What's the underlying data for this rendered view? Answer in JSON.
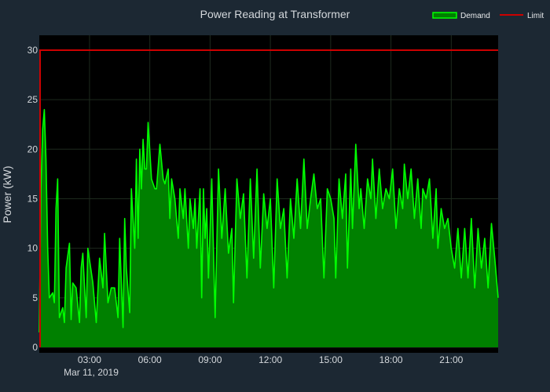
{
  "chart_data": {
    "type": "area",
    "title": "Power Reading at Transformer",
    "xlabel": "",
    "ylabel": "Power (kW)",
    "x_date_label": "Mar 11, 2019",
    "x_range": [
      "2019-03-11 00:30",
      "2019-03-11 23:20"
    ],
    "x_tick_labels": [
      "03:00",
      "06:00",
      "09:00",
      "12:00",
      "15:00",
      "18:00",
      "21:00"
    ],
    "ylim": [
      0,
      31.5
    ],
    "y_ticks": [
      0,
      5,
      10,
      15,
      20,
      25,
      30
    ],
    "grid": true,
    "legend_position": "top-right",
    "background_color": "#000000",
    "page_color": "#1c2833",
    "series": [
      {
        "name": "Demand",
        "type": "area",
        "line_color": "#00ff00",
        "fill_color": "#008000",
        "points": [
          [
            "00:30",
            1.5
          ],
          [
            "00:35",
            16
          ],
          [
            "00:40",
            22
          ],
          [
            "00:45",
            24
          ],
          [
            "00:50",
            19
          ],
          [
            "00:55",
            10
          ],
          [
            "01:00",
            5
          ],
          [
            "01:10",
            5.5
          ],
          [
            "01:15",
            4.5
          ],
          [
            "01:20",
            14
          ],
          [
            "01:25",
            17
          ],
          [
            "01:30",
            3
          ],
          [
            "01:40",
            4
          ],
          [
            "01:45",
            2.5
          ],
          [
            "01:50",
            8
          ],
          [
            "02:00",
            10.5
          ],
          [
            "02:05",
            2.8
          ],
          [
            "02:10",
            6.5
          ],
          [
            "02:20",
            6
          ],
          [
            "02:30",
            2.5
          ],
          [
            "02:35",
            8
          ],
          [
            "02:40",
            9.5
          ],
          [
            "02:50",
            3
          ],
          [
            "02:55",
            10
          ],
          [
            "03:10",
            6.5
          ],
          [
            "03:20",
            2.5
          ],
          [
            "03:30",
            9
          ],
          [
            "03:40",
            6
          ],
          [
            "03:45",
            11.5
          ],
          [
            "03:55",
            4.5
          ],
          [
            "04:05",
            6
          ],
          [
            "04:15",
            6
          ],
          [
            "04:25",
            3
          ],
          [
            "04:30",
            11
          ],
          [
            "04:40",
            2
          ],
          [
            "04:45",
            13
          ],
          [
            "04:50",
            8
          ],
          [
            "05:00",
            3.5
          ],
          [
            "05:05",
            16
          ],
          [
            "05:15",
            10
          ],
          [
            "05:20",
            19
          ],
          [
            "05:25",
            11
          ],
          [
            "05:30",
            20
          ],
          [
            "05:35",
            16
          ],
          [
            "05:40",
            21
          ],
          [
            "05:45",
            18
          ],
          [
            "05:50",
            18
          ],
          [
            "05:55",
            22.7
          ],
          [
            "06:05",
            17
          ],
          [
            "06:15",
            16
          ],
          [
            "06:20",
            16
          ],
          [
            "06:30",
            20.5
          ],
          [
            "06:40",
            17
          ],
          [
            "06:45",
            16.5
          ],
          [
            "06:55",
            18
          ],
          [
            "07:00",
            13
          ],
          [
            "07:05",
            17
          ],
          [
            "07:15",
            15
          ],
          [
            "07:25",
            11
          ],
          [
            "07:30",
            16
          ],
          [
            "07:40",
            13
          ],
          [
            "07:45",
            16
          ],
          [
            "07:55",
            10
          ],
          [
            "08:00",
            15
          ],
          [
            "08:10",
            12
          ],
          [
            "08:15",
            15
          ],
          [
            "08:20",
            10
          ],
          [
            "08:25",
            13
          ],
          [
            "08:30",
            16
          ],
          [
            "08:35",
            5
          ],
          [
            "08:40",
            16
          ],
          [
            "08:45",
            11
          ],
          [
            "08:50",
            14
          ],
          [
            "08:55",
            7
          ],
          [
            "09:05",
            17
          ],
          [
            "09:15",
            3
          ],
          [
            "09:25",
            18
          ],
          [
            "09:35",
            11
          ],
          [
            "09:45",
            16
          ],
          [
            "09:55",
            9.5
          ],
          [
            "10:05",
            12
          ],
          [
            "10:10",
            4.5
          ],
          [
            "10:20",
            17
          ],
          [
            "10:30",
            13
          ],
          [
            "10:40",
            15.5
          ],
          [
            "10:50",
            7
          ],
          [
            "11:00",
            17
          ],
          [
            "11:10",
            9
          ],
          [
            "11:20",
            18
          ],
          [
            "11:30",
            8
          ],
          [
            "11:40",
            15.5
          ],
          [
            "11:50",
            12
          ],
          [
            "12:00",
            15
          ],
          [
            "12:10",
            6
          ],
          [
            "12:20",
            17
          ],
          [
            "12:30",
            12
          ],
          [
            "12:40",
            14
          ],
          [
            "12:50",
            7
          ],
          [
            "13:00",
            15
          ],
          [
            "13:10",
            11
          ],
          [
            "13:20",
            17
          ],
          [
            "13:30",
            12
          ],
          [
            "13:40",
            19
          ],
          [
            "13:50",
            12
          ],
          [
            "14:00",
            15
          ],
          [
            "14:10",
            17.5
          ],
          [
            "14:20",
            14
          ],
          [
            "14:30",
            15
          ],
          [
            "14:40",
            7
          ],
          [
            "14:50",
            16
          ],
          [
            "15:00",
            15
          ],
          [
            "15:10",
            13
          ],
          [
            "15:15",
            7
          ],
          [
            "15:25",
            17
          ],
          [
            "15:35",
            13
          ],
          [
            "15:45",
            17.5
          ],
          [
            "15:50",
            8
          ],
          [
            "16:00",
            18
          ],
          [
            "16:05",
            12
          ],
          [
            "16:15",
            20.5
          ],
          [
            "16:25",
            14
          ],
          [
            "16:30",
            16
          ],
          [
            "16:40",
            12
          ],
          [
            "16:50",
            17
          ],
          [
            "17:00",
            15
          ],
          [
            "17:05",
            19
          ],
          [
            "17:15",
            13
          ],
          [
            "17:25",
            18
          ],
          [
            "17:35",
            14
          ],
          [
            "17:45",
            16
          ],
          [
            "17:55",
            15
          ],
          [
            "18:05",
            18
          ],
          [
            "18:15",
            12
          ],
          [
            "18:25",
            16
          ],
          [
            "18:35",
            14
          ],
          [
            "18:40",
            18.5
          ],
          [
            "18:50",
            15
          ],
          [
            "19:00",
            18
          ],
          [
            "19:10",
            13
          ],
          [
            "19:20",
            17
          ],
          [
            "19:30",
            12
          ],
          [
            "19:35",
            16
          ],
          [
            "19:45",
            15
          ],
          [
            "19:55",
            17
          ],
          [
            "20:05",
            11
          ],
          [
            "20:15",
            16
          ],
          [
            "20:20",
            10
          ],
          [
            "20:30",
            14
          ],
          [
            "20:40",
            12
          ],
          [
            "20:50",
            13
          ],
          [
            "21:00",
            10
          ],
          [
            "21:10",
            8
          ],
          [
            "21:20",
            12
          ],
          [
            "21:30",
            7
          ],
          [
            "21:40",
            12
          ],
          [
            "21:50",
            7
          ],
          [
            "22:00",
            13
          ],
          [
            "22:10",
            6
          ],
          [
            "22:20",
            12
          ],
          [
            "22:30",
            8
          ],
          [
            "22:40",
            11
          ],
          [
            "22:50",
            6
          ],
          [
            "23:00",
            12.5
          ],
          [
            "23:10",
            9
          ],
          [
            "23:20",
            5
          ]
        ]
      },
      {
        "name": "Limit",
        "type": "line",
        "line_color": "#cc0000",
        "value": 30
      }
    ]
  }
}
